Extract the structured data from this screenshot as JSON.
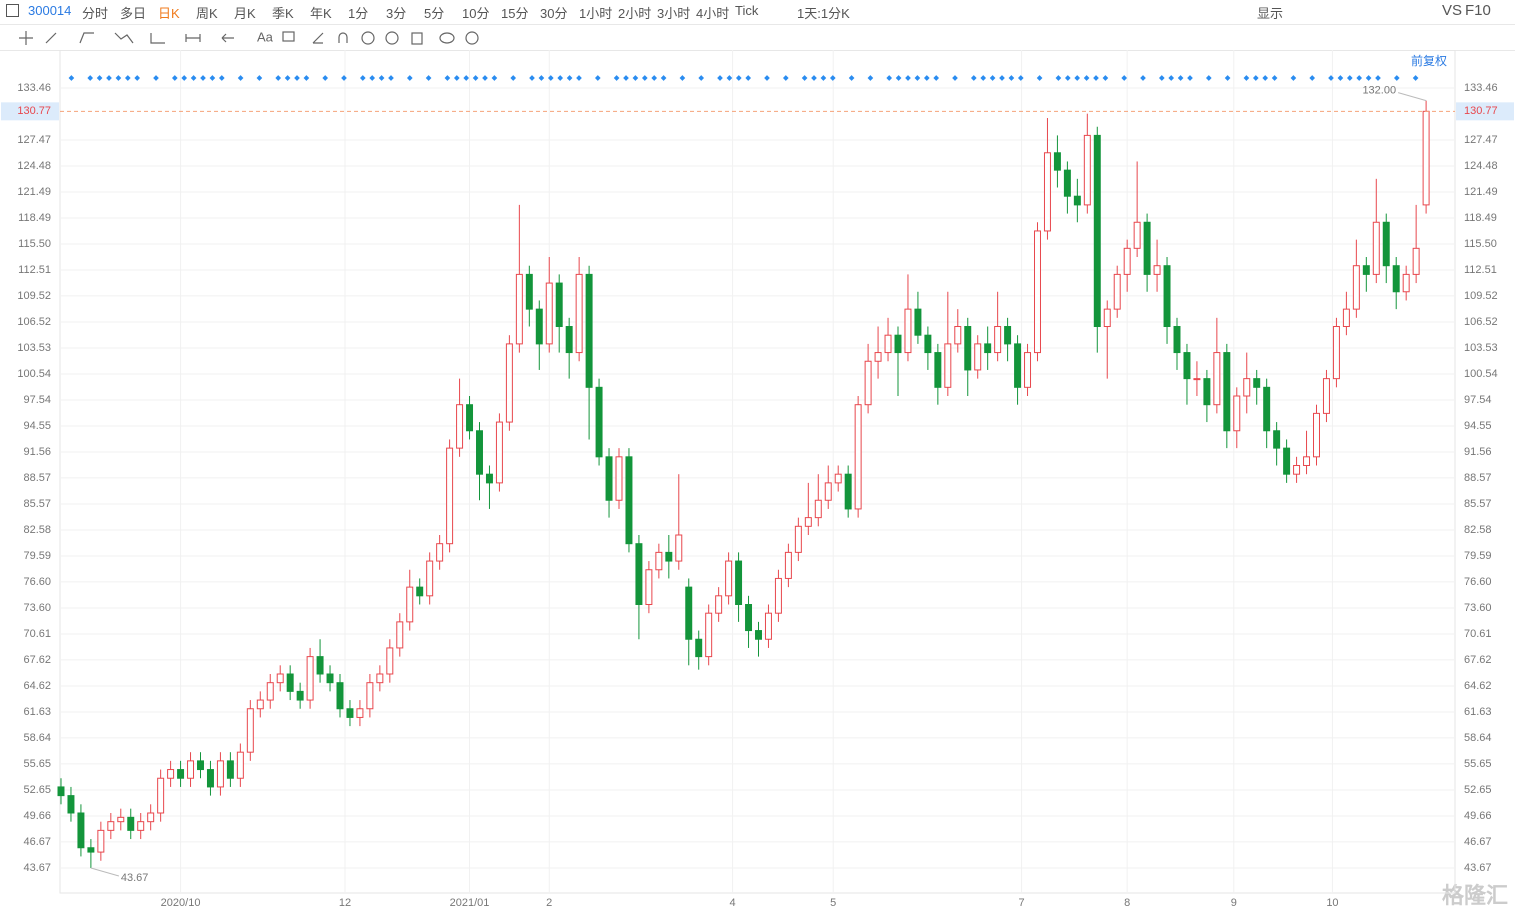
{
  "toolbar": {
    "code": "300014",
    "periods": [
      "分时",
      "多日",
      "日K",
      "周K",
      "月K",
      "季K",
      "年K",
      "1分",
      "3分",
      "5分",
      "10分",
      "15分",
      "30分",
      "1小时",
      "2小时",
      "3小时",
      "4小时",
      "Tick",
      "1天:1分K"
    ],
    "active": "日K",
    "show": "显示",
    "vs": "VS",
    "f10": "F10"
  },
  "adjust": "前复权",
  "watermark": "格隆汇",
  "chart_data": {
    "type": "candlestick",
    "open": [
      53,
      52,
      50,
      46,
      45.5,
      48,
      49,
      49.5,
      48,
      49,
      50,
      54,
      55,
      54,
      56,
      55,
      53,
      56,
      54,
      57,
      62,
      63,
      65,
      66,
      64,
      63,
      68,
      66,
      65,
      62,
      61,
      62,
      65,
      66,
      69,
      72,
      76,
      75,
      79,
      81,
      92,
      97,
      94,
      89,
      88,
      95,
      104,
      112,
      108,
      104,
      111,
      106,
      103,
      112,
      99,
      91,
      86,
      91,
      81,
      74,
      78,
      80,
      79,
      76,
      70,
      68,
      73,
      75,
      79,
      74,
      71,
      70,
      73,
      77,
      80,
      83,
      84,
      86,
      88,
      89,
      85,
      97,
      102,
      103,
      105,
      103,
      108,
      105,
      103,
      99,
      104,
      106,
      101,
      104,
      103,
      106,
      104,
      99,
      103,
      117,
      126,
      124,
      121,
      120,
      128,
      106,
      108,
      112,
      115,
      118,
      112,
      113,
      106,
      103,
      100,
      100,
      97,
      103,
      94,
      98,
      100,
      99,
      94,
      92,
      89,
      90,
      91,
      96,
      100,
      106,
      108,
      113,
      112,
      118,
      113,
      110,
      112,
      120
    ],
    "high": [
      54,
      53,
      51,
      47,
      49,
      50,
      50.5,
      50.5,
      50,
      51,
      55,
      56,
      56,
      57,
      57,
      56,
      57,
      57,
      58,
      63,
      64,
      66,
      67,
      67,
      65,
      69,
      70,
      67,
      66,
      63,
      63,
      66,
      67,
      70,
      73,
      78,
      77,
      80,
      82,
      93,
      100,
      98,
      95,
      90,
      96,
      105,
      120,
      113,
      109,
      114,
      112,
      107,
      114,
      113,
      100,
      92,
      92,
      92,
      82,
      79,
      81,
      82,
      89,
      77,
      71,
      74,
      76,
      80,
      80,
      75,
      72,
      74,
      78,
      81,
      84,
      88,
      89,
      90,
      90,
      90,
      98,
      104,
      106,
      107,
      106,
      112,
      110,
      106,
      104,
      110,
      108,
      107,
      105,
      106,
      110,
      107,
      105,
      104,
      118,
      130,
      128,
      125,
      123,
      130.5,
      129,
      109,
      113,
      116,
      125,
      119,
      116,
      114,
      107,
      104,
      102,
      101,
      107,
      104,
      99,
      103,
      101,
      100,
      95,
      93,
      91,
      94,
      97,
      101,
      107,
      110,
      116,
      114,
      123,
      119,
      114,
      113,
      120,
      132
    ],
    "low": [
      51,
      49,
      45,
      43.67,
      44.5,
      47,
      48,
      47,
      47,
      48,
      49,
      53,
      53,
      53,
      54,
      52,
      52,
      53,
      53,
      56,
      61,
      62,
      64,
      63,
      62,
      62,
      65,
      64,
      61,
      60,
      60,
      61,
      64,
      65,
      68,
      71,
      74,
      74,
      78,
      80,
      91,
      93,
      86,
      85,
      87,
      94,
      103,
      106,
      101,
      103,
      103,
      100,
      102,
      93,
      90,
      84,
      85,
      80,
      70,
      73,
      77,
      77,
      78,
      67,
      66.5,
      67,
      72,
      74,
      72,
      69,
      68,
      69,
      72,
      76,
      79,
      82,
      83,
      85,
      87,
      84,
      84,
      96,
      100,
      102,
      98,
      102,
      104,
      101,
      97,
      98,
      103,
      98,
      100,
      101,
      102,
      102,
      97,
      98,
      102,
      116,
      122,
      119,
      118,
      119,
      103,
      100,
      107,
      110,
      114,
      110,
      110,
      104,
      101,
      97,
      98,
      95,
      96,
      92,
      92,
      96,
      97,
      92,
      90,
      88,
      88,
      89,
      90,
      95,
      99,
      105,
      107,
      110,
      111,
      111,
      108,
      109,
      111,
      119
    ],
    "close": [
      52,
      50,
      46,
      45.5,
      48,
      49,
      49.5,
      48,
      49,
      50,
      54,
      55,
      54,
      56,
      55,
      53,
      56,
      54,
      57,
      62,
      63,
      65,
      66,
      64,
      63,
      68,
      66,
      65,
      62,
      61,
      62,
      65,
      66,
      69,
      72,
      76,
      75,
      79,
      81,
      92,
      97,
      94,
      89,
      88,
      95,
      104,
      112,
      108,
      104,
      111,
      106,
      103,
      112,
      99,
      91,
      86,
      91,
      81,
      74,
      78,
      80,
      79,
      82,
      70,
      68,
      73,
      75,
      79,
      74,
      71,
      70,
      73,
      77,
      80,
      83,
      84,
      86,
      88,
      89,
      85,
      97,
      102,
      103,
      105,
      103,
      108,
      105,
      103,
      99,
      104,
      106,
      101,
      104,
      103,
      106,
      104,
      99,
      103,
      117,
      126,
      124,
      121,
      120,
      128,
      106,
      108,
      112,
      115,
      118,
      112,
      113,
      106,
      103,
      100,
      100,
      97,
      103,
      94,
      98,
      100,
      99,
      94,
      92,
      89,
      90,
      91,
      96,
      100,
      106,
      108,
      113,
      112,
      118,
      113,
      110,
      112,
      115,
      130.77
    ],
    "up_color": "#e8474d",
    "down_color": "#13953b",
    "xlim": [
      -0.1,
      139.9
    ],
    "xticks": [
      {
        "value": 12,
        "label": "2020/10"
      },
      {
        "value": 28.5,
        "label": "12"
      },
      {
        "value": 41,
        "label": "2021/01"
      },
      {
        "value": 49,
        "label": "2"
      },
      {
        "value": 67.4,
        "label": "4"
      },
      {
        "value": 77.5,
        "label": "5"
      },
      {
        "value": 96.4,
        "label": "7"
      },
      {
        "value": 107,
        "label": "8"
      },
      {
        "value": 117.7,
        "label": "9"
      },
      {
        "value": 127.6,
        "label": "10"
      }
    ],
    "ylim": [
      40.79,
      137.83
    ],
    "yticks": [
      133.46,
      127.47,
      124.48,
      121.49,
      118.49,
      {
        "value": 115.5,
        "label": "115.50"
      },
      112.51,
      109.52,
      106.52,
      103.53,
      100.54,
      97.54,
      94.55,
      91.56,
      88.57,
      85.57,
      82.58,
      79.59,
      {
        "value": 76.6,
        "label": "76.60"
      },
      {
        "value": 73.6,
        "label": "73.60"
      },
      70.61,
      67.62,
      64.62,
      61.63,
      58.64,
      55.65,
      52.65,
      49.66,
      46.67,
      43.67
    ],
    "grid": true,
    "last_price": 130.77,
    "max_label": {
      "value": 132,
      "label": "132.00"
    },
    "min_label": 43.67
  }
}
